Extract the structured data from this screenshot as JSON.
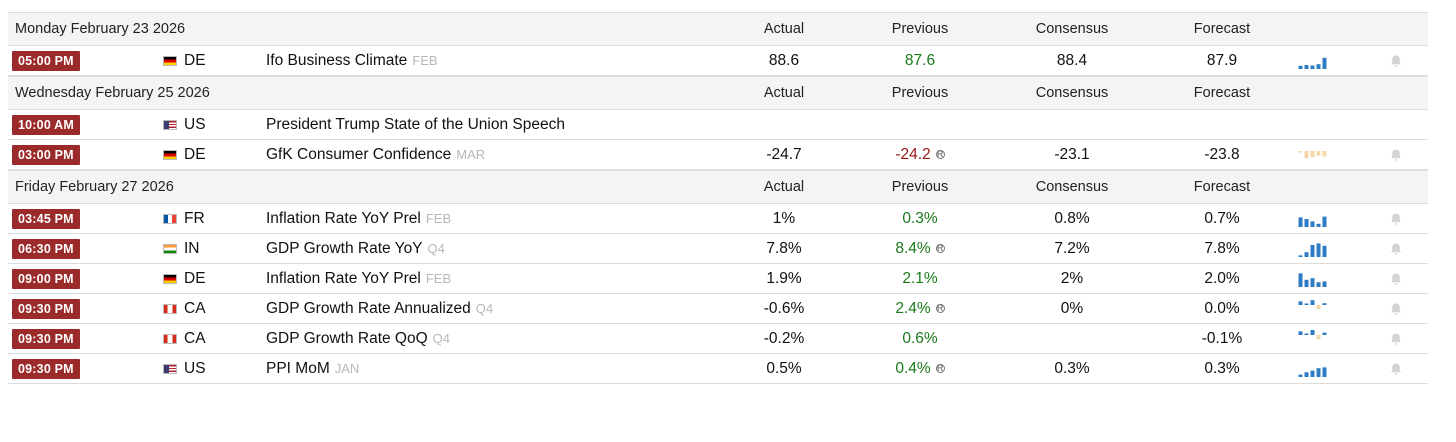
{
  "columns": {
    "actual": "Actual",
    "previous": "Previous",
    "consensus": "Consensus",
    "forecast": "Forecast"
  },
  "colors": {
    "time_badge": "#9b2a2a",
    "positive": "#1a7a1a",
    "negative": "#9b1414",
    "spark_blue": "#2e7cc4",
    "spark_neg": "#f4d8a8"
  },
  "groups": [
    {
      "date": "Monday February 23 2026",
      "events": [
        {
          "time": "05:00 PM",
          "country": "DE",
          "flag": "de",
          "name": "Ifo Business Climate",
          "ref": "FEB",
          "actual": "88.6",
          "previous": "87.6",
          "prev_dir": "pos",
          "revised": false,
          "consensus": "88.4",
          "forecast": "87.9",
          "spark": [
            0.2,
            0.25,
            0.22,
            0.3,
            0.7
          ],
          "bell": true
        }
      ]
    },
    {
      "date": "Wednesday February 25 2026",
      "events": [
        {
          "time": "10:00 AM",
          "country": "US",
          "flag": "us",
          "name": "President Trump State of the Union Speech",
          "ref": "",
          "actual": "",
          "previous": "",
          "prev_dir": "",
          "revised": false,
          "consensus": "",
          "forecast": "",
          "spark": [],
          "bell": false
        },
        {
          "time": "03:00 PM",
          "country": "DE",
          "flag": "de",
          "name": "GfK Consumer Confidence",
          "ref": "MAR",
          "actual": "-24.7",
          "previous": "-24.2",
          "prev_dir": "neg",
          "revised": true,
          "consensus": "-23.1",
          "forecast": "-23.8",
          "spark": [
            -0.1,
            -0.6,
            -0.5,
            -0.4,
            -0.45
          ],
          "bell": true
        }
      ]
    },
    {
      "date": "Friday February 27 2026",
      "events": [
        {
          "time": "03:45 PM",
          "country": "FR",
          "flag": "fr",
          "name": "Inflation Rate YoY Prel",
          "ref": "FEB",
          "actual": "1%",
          "previous": "0.3%",
          "prev_dir": "pos",
          "revised": false,
          "consensus": "0.8%",
          "forecast": "0.7%",
          "spark": [
            0.6,
            0.5,
            0.35,
            0.2,
            0.65
          ],
          "bell": true
        },
        {
          "time": "06:30 PM",
          "country": "IN",
          "flag": "in",
          "name": "GDP Growth Rate YoY",
          "ref": "Q4",
          "actual": "7.8%",
          "previous": "8.4%",
          "prev_dir": "pos",
          "revised": true,
          "consensus": "7.2%",
          "forecast": "7.8%",
          "spark": [
            0.1,
            0.3,
            0.75,
            0.85,
            0.7
          ],
          "bell": true
        },
        {
          "time": "09:00 PM",
          "country": "DE",
          "flag": "de",
          "name": "Inflation Rate YoY Prel",
          "ref": "FEB",
          "actual": "1.9%",
          "previous": "2.1%",
          "prev_dir": "pos",
          "revised": false,
          "consensus": "2%",
          "forecast": "2.0%",
          "spark": [
            0.85,
            0.45,
            0.55,
            0.3,
            0.35
          ],
          "bell": true
        },
        {
          "time": "09:30 PM",
          "country": "CA",
          "flag": "ca",
          "name": "GDP Growth Rate Annualized",
          "ref": "Q4",
          "actual": "-0.6%",
          "previous": "2.4%",
          "prev_dir": "pos",
          "revised": true,
          "consensus": "0%",
          "forecast": "0.0%",
          "spark": [
            0.3,
            0.1,
            0.4,
            -0.35,
            0.15
          ],
          "bell": true
        },
        {
          "time": "09:30 PM",
          "country": "CA",
          "flag": "ca",
          "name": "GDP Growth Rate QoQ",
          "ref": "Q4",
          "actual": "-0.2%",
          "previous": "0.6%",
          "prev_dir": "pos",
          "revised": false,
          "consensus": "",
          "forecast": "-0.1%",
          "spark": [
            0.3,
            0.1,
            0.45,
            -0.35,
            0.2
          ],
          "bell": true
        },
        {
          "time": "09:30 PM",
          "country": "US",
          "flag": "us",
          "name": "PPI MoM",
          "ref": "JAN",
          "actual": "0.5%",
          "previous": "0.4%",
          "prev_dir": "pos",
          "revised": true,
          "consensus": "0.3%",
          "forecast": "0.3%",
          "spark": [
            0.15,
            0.3,
            0.4,
            0.55,
            0.6
          ],
          "bell": true
        }
      ]
    }
  ]
}
